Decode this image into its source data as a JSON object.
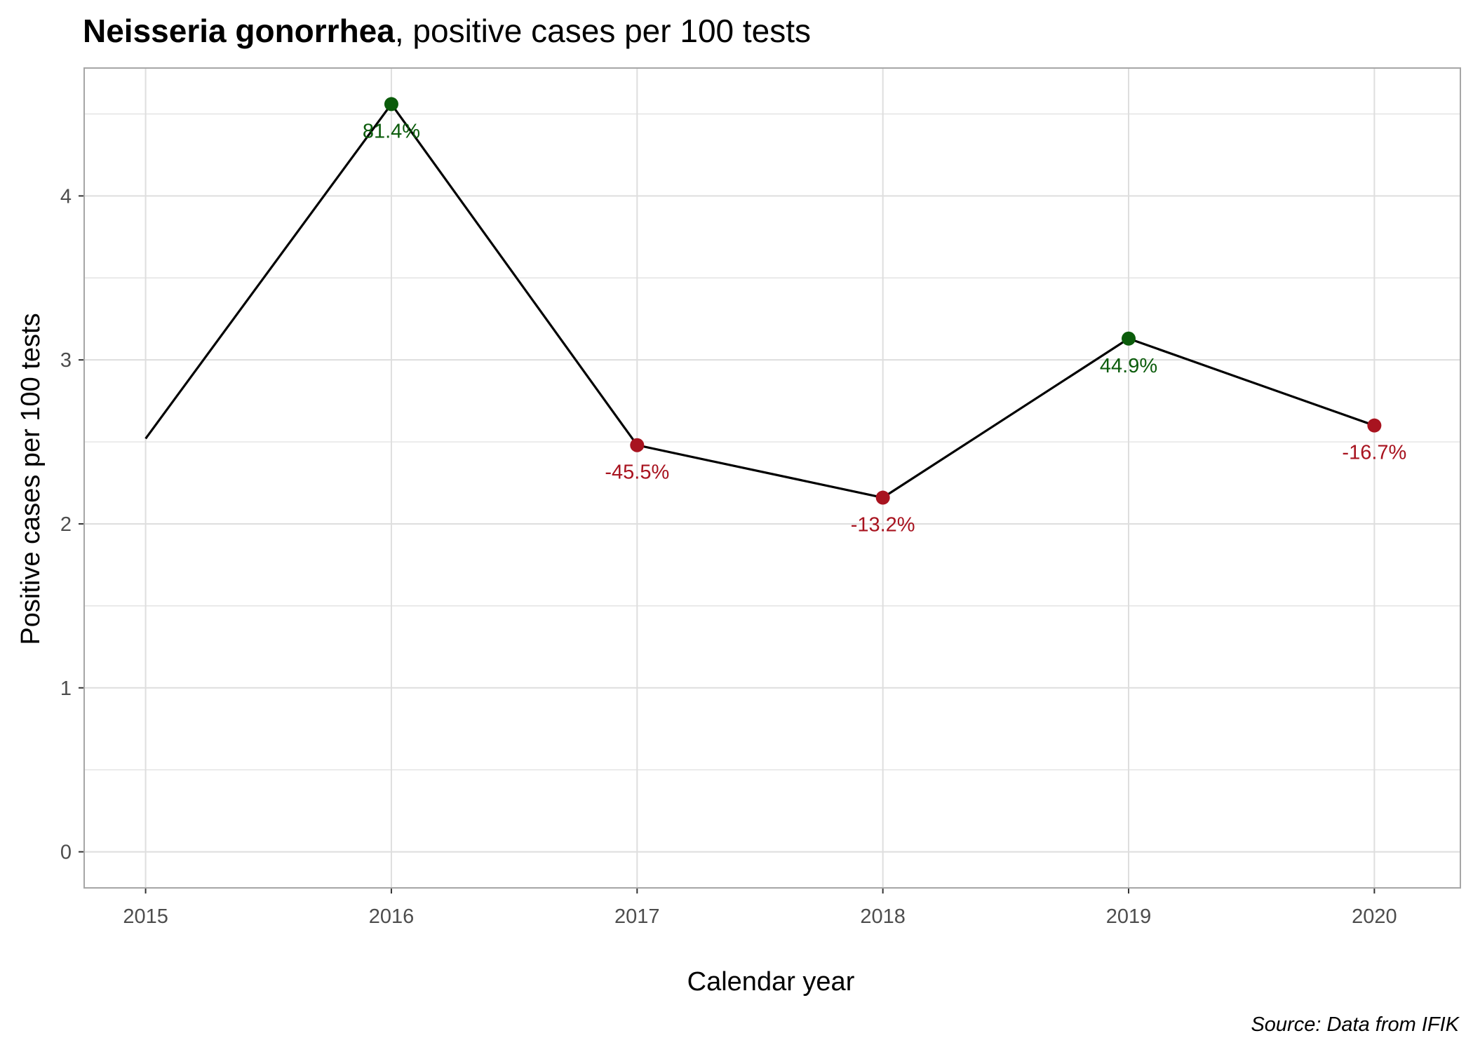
{
  "chart_data": {
    "type": "line",
    "title_bold": "Neisseria gonorrhea",
    "title_rest": ", positive cases per 100 tests",
    "xlabel": "Calendar year",
    "ylabel": "Positive cases per 100 tests",
    "caption": "Source: Data from IFIK",
    "x": [
      2015,
      2016,
      2017,
      2018,
      2019,
      2020
    ],
    "x_tick_labels": [
      "2015",
      "2016",
      "2017",
      "2018",
      "2019",
      "2020"
    ],
    "y_ticks": [
      0,
      1,
      2,
      3,
      4
    ],
    "y_tick_labels": [
      "0",
      "1",
      "2",
      "3",
      "4"
    ],
    "xlim": [
      2014.75,
      2020.35
    ],
    "ylim": [
      -0.22,
      4.78
    ],
    "grid": true,
    "series": [
      {
        "values": [
          2.52,
          4.56,
          2.48,
          2.16,
          3.13,
          2.6
        ],
        "change_labels": [
          null,
          "81.4%",
          "-45.5%",
          "-13.2%",
          "44.9%",
          "-16.7%"
        ],
        "change_direction": [
          null,
          "up",
          "down",
          "down",
          "up",
          "down"
        ]
      }
    ],
    "colors": {
      "line": "#000000",
      "up": "#0b5c0b",
      "down": "#a8131f",
      "grid": "#dedede",
      "panel_border": "#a6a6a6"
    }
  }
}
